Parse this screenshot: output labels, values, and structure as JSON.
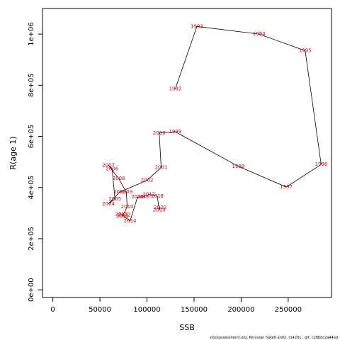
{
  "chart_data": {
    "type": "line",
    "title": "",
    "xlabel": "SSB",
    "ylabel": "R(age 1)",
    "xlim": [
      -11000,
      296000
    ],
    "ylim": [
      -30000,
      1100000
    ],
    "xticks": [
      {
        "v": 0,
        "label": "0"
      },
      {
        "v": 50000,
        "label": "50000"
      },
      {
        "v": 100000,
        "label": "100000"
      },
      {
        "v": 150000,
        "label": "150000"
      },
      {
        "v": 200000,
        "label": "200000"
      },
      {
        "v": 250000,
        "label": "250000"
      }
    ],
    "yticks": [
      {
        "v": 0,
        "label": "0e+00"
      },
      {
        "v": 200000,
        "label": "2e+05"
      },
      {
        "v": 400000,
        "label": "4e+05"
      },
      {
        "v": 600000,
        "label": "6e+05"
      },
      {
        "v": 800000,
        "label": "8e+05"
      },
      {
        "v": 1000000,
        "label": "1e+06"
      }
    ],
    "grid": false,
    "point_color": "#e8000b",
    "line_color": "#000000",
    "points": [
      {
        "year": "1992",
        "x": 130000,
        "y": 785000
      },
      {
        "year": "1993",
        "x": 153000,
        "y": 1030000
      },
      {
        "year": "1994",
        "x": 219000,
        "y": 1000000
      },
      {
        "year": "1995",
        "x": 268000,
        "y": 935000
      },
      {
        "year": "1996",
        "x": 285000,
        "y": 490000
      },
      {
        "year": "1997",
        "x": 248000,
        "y": 402000
      },
      {
        "year": "1998",
        "x": 197000,
        "y": 483000
      },
      {
        "year": "1999",
        "x": 130000,
        "y": 618000
      },
      {
        "year": "2000",
        "x": 113000,
        "y": 613000
      },
      {
        "year": "2001",
        "x": 115000,
        "y": 478000
      },
      {
        "year": "2002",
        "x": 100000,
        "y": 428000
      },
      {
        "year": "2003",
        "x": 71000,
        "y": 382000
      },
      {
        "year": "2004",
        "x": 59000,
        "y": 336000
      },
      {
        "year": "2005",
        "x": 66000,
        "y": 355000
      },
      {
        "year": "2006",
        "x": 63000,
        "y": 473000
      },
      {
        "year": "2007",
        "x": 59000,
        "y": 487000
      },
      {
        "year": "2008",
        "x": 70000,
        "y": 435000
      },
      {
        "year": "2009",
        "x": 78000,
        "y": 382000
      },
      {
        "year": "2010",
        "x": 79000,
        "y": 325000
      },
      {
        "year": "2011",
        "x": 74000,
        "y": 287000
      },
      {
        "year": "2012",
        "x": 76000,
        "y": 293000
      },
      {
        "year": "2013",
        "x": 73000,
        "y": 295000
      },
      {
        "year": "2014",
        "x": 82000,
        "y": 269000
      },
      {
        "year": "2015",
        "x": 90000,
        "y": 363000
      },
      {
        "year": "2016",
        "x": 96000,
        "y": 363000
      },
      {
        "year": "2017",
        "x": 102000,
        "y": 373000
      },
      {
        "year": "2018",
        "x": 111000,
        "y": 366000
      },
      {
        "year": "2019",
        "x": 113000,
        "y": 312000
      },
      {
        "year": "2020",
        "x": 114000,
        "y": 322000
      }
    ]
  },
  "footer": {
    "credit": "stockassessment.org,  Peruvian  hake6  an02,  r14201  ,  git:  c28bdc2a44ad"
  }
}
